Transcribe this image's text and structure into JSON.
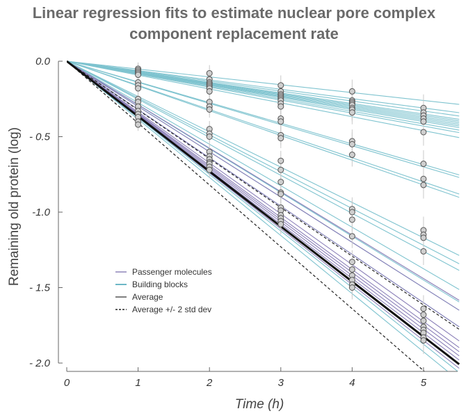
{
  "chart_data": {
    "type": "line",
    "title_lines": [
      "Linear regression fits to estimate nuclear pore complex",
      "component replacement rate"
    ],
    "xlabel": "Time (h)",
    "ylabel": "Remaining old protein (log)",
    "xlim": [
      0,
      5.5
    ],
    "ylim": [
      -2.0,
      0.0
    ],
    "x_ticks": [
      0,
      1,
      2,
      3,
      4,
      5
    ],
    "x_tick_labels": [
      "0",
      "1",
      "2",
      "3",
      "4",
      "5"
    ],
    "y_ticks": [
      0.0,
      -0.5,
      -1.0,
      -1.5,
      -2.0
    ],
    "y_tick_labels": [
      "0.0",
      "- 0.5",
      "-1.0",
      "- 1.5",
      "- 2.0"
    ],
    "grid": false,
    "legend": {
      "position": "lower-left",
      "entries": [
        {
          "label": "Passenger molecules",
          "color": "#8e84b8",
          "style": "solid"
        },
        {
          "label": "Building blocks",
          "color": "#3a9fb3",
          "style": "solid"
        },
        {
          "label": "Average",
          "color": "#555555",
          "style": "solid"
        },
        {
          "label": "Average +/- 2 std dev",
          "color": "#222222",
          "style": "dashed"
        }
      ]
    },
    "colors": {
      "building_blocks": "#7ec3cf",
      "passenger_molecules": "#8a7fb8",
      "average": "#111111",
      "std_dev": "#222222",
      "points_fill": "#cfcfcf",
      "points_stroke": "#555555",
      "error_bars": "#c8c8c8"
    },
    "time_points": [
      1,
      2,
      3,
      4,
      5
    ],
    "average": {
      "slope": -0.365
    },
    "std_dev_bands": [
      {
        "label": "plus_2sd",
        "slope": -0.323
      },
      {
        "label": "minus_2sd",
        "slope": -0.41
      }
    ],
    "building_block_slopes": [
      -0.052,
      -0.062,
      -0.066,
      -0.07,
      -0.072,
      -0.074,
      -0.076,
      -0.078,
      -0.08,
      -0.083,
      -0.086,
      -0.092,
      -0.137,
      -0.14,
      -0.16,
      -0.164,
      -0.234,
      -0.244,
      -0.252,
      -0.275,
      -0.29,
      -0.3,
      -0.32,
      -0.375,
      -0.385
    ],
    "passenger_slopes": [
      -0.288,
      -0.3,
      -0.32,
      -0.337,
      -0.345,
      -0.35,
      -0.355,
      -0.36,
      -0.37
    ],
    "observations": {
      "t1": [
        -0.05,
        -0.06,
        -0.07,
        -0.08,
        -0.09,
        -0.14,
        -0.16,
        -0.18,
        -0.25,
        -0.27,
        -0.3,
        -0.33,
        -0.35,
        -0.37,
        -0.4,
        -0.42
      ],
      "t2": [
        -0.08,
        -0.12,
        -0.14,
        -0.15,
        -0.16,
        -0.17,
        -0.18,
        -0.2,
        -0.27,
        -0.3,
        -0.32,
        -0.45,
        -0.48,
        -0.5,
        -0.6,
        -0.63,
        -0.65,
        -0.67,
        -0.68,
        -0.7,
        -0.72
      ],
      "t3": [
        -0.16,
        -0.2,
        -0.22,
        -0.23,
        -0.24,
        -0.25,
        -0.26,
        -0.28,
        -0.3,
        -0.38,
        -0.4,
        -0.49,
        -0.51,
        -0.66,
        -0.72,
        -0.8,
        -0.87,
        -0.88,
        -0.97,
        -0.99,
        -1.02,
        -1.04,
        -1.06,
        -1.08
      ],
      "t4": [
        -0.2,
        -0.26,
        -0.27,
        -0.28,
        -0.29,
        -0.31,
        -0.32,
        -0.34,
        -0.53,
        -0.55,
        -0.62,
        -0.98,
        -1.0,
        -1.05,
        -1.16,
        -1.33,
        -1.38,
        -1.42,
        -1.45,
        -1.48,
        -1.5
      ],
      "t5": [
        -0.31,
        -0.34,
        -0.36,
        -0.38,
        -0.4,
        -0.47,
        -0.68,
        -0.78,
        -0.82,
        -1.12,
        -1.15,
        -1.17,
        -1.26,
        -1.64,
        -1.68,
        -1.72,
        -1.76,
        -1.78,
        -1.8,
        -1.83,
        -1.85
      ]
    }
  }
}
